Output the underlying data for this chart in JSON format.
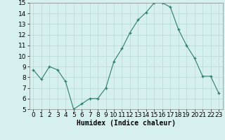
{
  "x": [
    0,
    1,
    2,
    3,
    4,
    5,
    6,
    7,
    8,
    9,
    10,
    11,
    12,
    13,
    14,
    15,
    16,
    17,
    18,
    19,
    20,
    21,
    22,
    23
  ],
  "y": [
    8.7,
    7.8,
    9.0,
    8.7,
    7.6,
    5.0,
    5.5,
    6.0,
    6.0,
    7.0,
    9.5,
    10.7,
    12.2,
    13.4,
    14.1,
    15.0,
    15.0,
    14.6,
    12.5,
    11.0,
    9.8,
    8.1,
    8.1,
    6.5
  ],
  "xlabel": "Humidex (Indice chaleur)",
  "ylim": [
    5,
    15
  ],
  "xlim": [
    -0.5,
    23.5
  ],
  "yticks": [
    5,
    6,
    7,
    8,
    9,
    10,
    11,
    12,
    13,
    14,
    15
  ],
  "xticks": [
    0,
    1,
    2,
    3,
    4,
    5,
    6,
    7,
    8,
    9,
    10,
    11,
    12,
    13,
    14,
    15,
    16,
    17,
    18,
    19,
    20,
    21,
    22,
    23
  ],
  "line_color": "#2e7d6e",
  "marker_color": "#2e7d6e",
  "bg_color": "#d6f0f0",
  "grid_color": "#b8d8d4",
  "xlabel_fontsize": 7,
  "tick_fontsize": 6.5
}
